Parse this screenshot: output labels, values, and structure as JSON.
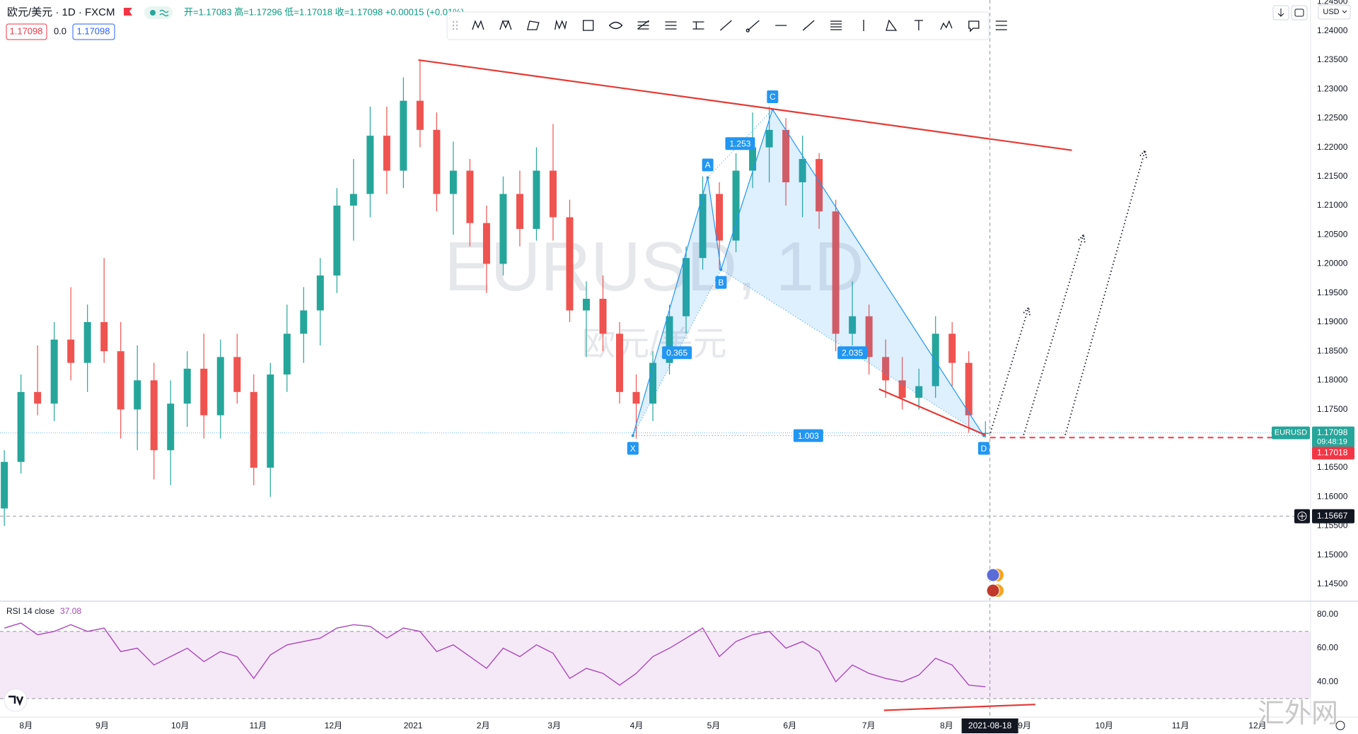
{
  "header": {
    "symbol": "欧元/美元 · 1D · FXCM",
    "ohlc": "开=1.17083 高=1.17296 低=1.17018 收=1.17098 +0.00015 (+0.01%)",
    "badges": [
      "1.17098",
      "0.0",
      "1.17098"
    ]
  },
  "watermark": {
    "symbol": "EURUSD, 1D",
    "name": "欧元/美元"
  },
  "currency": "USD",
  "logo": "汇外网",
  "time_axis": {
    "labels": [
      "8月",
      "9月",
      "10月",
      "11月",
      "12月",
      "2021",
      "2月",
      "3月",
      "4月",
      "5月",
      "6月",
      "7月",
      "8月",
      "9月",
      "10月",
      "11月",
      "12月"
    ],
    "cursor_date": "2021-08-18"
  },
  "chart_data": [
    {
      "type": "candlestick",
      "up_color": "#26a69a",
      "down_color": "#ef5350",
      "grid": false,
      "ylim": [
        1.1422,
        1.2453
      ],
      "yticks": [
        {
          "value": 1.245,
          "label": "1.24500"
        },
        {
          "value": 1.24,
          "label": "1.24000"
        },
        {
          "value": 1.235,
          "label": "1.23500"
        },
        {
          "value": 1.23,
          "label": "1.23000"
        },
        {
          "value": 1.225,
          "label": "1.22500"
        },
        {
          "value": 1.22,
          "label": "1.22000"
        },
        {
          "value": 1.215,
          "label": "1.21500"
        },
        {
          "value": 1.21,
          "label": "1.21000"
        },
        {
          "value": 1.205,
          "label": "1.20500"
        },
        {
          "value": 1.2,
          "label": "1.20000"
        },
        {
          "value": 1.195,
          "label": "1.19500"
        },
        {
          "value": 1.19,
          "label": "1.19000"
        },
        {
          "value": 1.185,
          "label": "1.18500"
        },
        {
          "value": 1.18,
          "label": "1.18000"
        },
        {
          "value": 1.175,
          "label": "1.17500"
        },
        {
          "value": 1.165,
          "label": "1.16500"
        },
        {
          "value": 1.16,
          "label": "1.16000"
        },
        {
          "value": 1.155,
          "label": "1.15500"
        },
        {
          "value": 1.15,
          "label": "1.15000"
        },
        {
          "value": 1.145,
          "label": "1.14500"
        }
      ],
      "candles": [
        [
          1.158,
          1.168,
          1.155,
          1.166
        ],
        [
          1.166,
          1.181,
          1.164,
          1.178
        ],
        [
          1.178,
          1.186,
          1.174,
          1.176
        ],
        [
          1.176,
          1.19,
          1.173,
          1.187
        ],
        [
          1.187,
          1.196,
          1.18,
          1.183
        ],
        [
          1.183,
          1.193,
          1.178,
          1.19
        ],
        [
          1.19,
          1.201,
          1.183,
          1.185
        ],
        [
          1.185,
          1.19,
          1.17,
          1.175
        ],
        [
          1.175,
          1.186,
          1.168,
          1.18
        ],
        [
          1.18,
          1.183,
          1.163,
          1.168
        ],
        [
          1.168,
          1.18,
          1.162,
          1.176
        ],
        [
          1.176,
          1.185,
          1.172,
          1.182
        ],
        [
          1.182,
          1.188,
          1.17,
          1.174
        ],
        [
          1.174,
          1.187,
          1.17,
          1.184
        ],
        [
          1.184,
          1.188,
          1.176,
          1.178
        ],
        [
          1.178,
          1.181,
          1.162,
          1.165
        ],
        [
          1.165,
          1.183,
          1.16,
          1.181
        ],
        [
          1.181,
          1.193,
          1.178,
          1.188
        ],
        [
          1.188,
          1.196,
          1.183,
          1.192
        ],
        [
          1.192,
          1.201,
          1.186,
          1.198
        ],
        [
          1.198,
          1.213,
          1.195,
          1.21
        ],
        [
          1.21,
          1.218,
          1.204,
          1.212
        ],
        [
          1.212,
          1.227,
          1.208,
          1.222
        ],
        [
          1.222,
          1.227,
          1.212,
          1.216
        ],
        [
          1.216,
          1.232,
          1.213,
          1.228
        ],
        [
          1.228,
          1.235,
          1.22,
          1.223
        ],
        [
          1.223,
          1.226,
          1.209,
          1.212
        ],
        [
          1.212,
          1.221,
          1.205,
          1.216
        ],
        [
          1.216,
          1.218,
          1.203,
          1.207
        ],
        [
          1.207,
          1.21,
          1.195,
          1.2
        ],
        [
          1.2,
          1.215,
          1.198,
          1.212
        ],
        [
          1.212,
          1.216,
          1.203,
          1.206
        ],
        [
          1.206,
          1.22,
          1.204,
          1.216
        ],
        [
          1.216,
          1.224,
          1.204,
          1.208
        ],
        [
          1.208,
          1.211,
          1.19,
          1.192
        ],
        [
          1.192,
          1.197,
          1.184,
          1.194
        ],
        [
          1.194,
          1.198,
          1.185,
          1.188
        ],
        [
          1.188,
          1.19,
          1.176,
          1.178
        ],
        [
          1.178,
          1.181,
          1.17,
          1.176
        ],
        [
          1.176,
          1.185,
          1.173,
          1.183
        ],
        [
          1.183,
          1.193,
          1.181,
          1.191
        ],
        [
          1.191,
          1.203,
          1.188,
          1.201
        ],
        [
          1.201,
          1.215,
          1.199,
          1.212
        ],
        [
          1.212,
          1.214,
          1.199,
          1.204
        ],
        [
          1.204,
          1.219,
          1.202,
          1.216
        ],
        [
          1.216,
          1.226,
          1.213,
          1.22
        ],
        [
          1.22,
          1.227,
          1.214,
          1.223
        ],
        [
          1.223,
          1.225,
          1.21,
          1.214
        ],
        [
          1.214,
          1.222,
          1.208,
          1.218
        ],
        [
          1.218,
          1.219,
          1.206,
          1.209
        ],
        [
          1.209,
          1.211,
          1.185,
          1.188
        ],
        [
          1.188,
          1.197,
          1.186,
          1.191
        ],
        [
          1.191,
          1.193,
          1.181,
          1.184
        ],
        [
          1.184,
          1.187,
          1.177,
          1.18
        ],
        [
          1.18,
          1.184,
          1.175,
          1.177
        ],
        [
          1.177,
          1.182,
          1.175,
          1.179
        ],
        [
          1.179,
          1.191,
          1.177,
          1.188
        ],
        [
          1.188,
          1.19,
          1.179,
          1.183
        ],
        [
          1.183,
          1.185,
          1.171,
          1.174
        ],
        [
          1.17083,
          1.17296,
          1.17018,
          1.17098
        ]
      ],
      "pattern": {
        "color": "#2196f3",
        "points": [
          {
            "label": "X",
            "index": 37.8,
            "price": 1.1705
          },
          {
            "label": "A",
            "index": 42.3,
            "price": 1.2148
          },
          {
            "label": "B",
            "index": 43.1,
            "price": 1.199
          },
          {
            "label": "C",
            "index": 46.2,
            "price": 1.2265
          },
          {
            "label": "D",
            "index": 58.9,
            "price": 1.1705
          }
        ],
        "ratios": [
          {
            "value": 0.365,
            "points": [
              0,
              2
            ]
          },
          {
            "value": 1.253,
            "points": [
              1,
              3
            ]
          },
          {
            "value": 2.035,
            "points": [
              2,
              4
            ]
          },
          {
            "value": 1.003,
            "points": [
              0,
              4
            ]
          }
        ]
      },
      "trendlines": [
        {
          "from": [
            24.9,
            1.235
          ],
          "to": [
            64.2,
            1.2195
          ],
          "color": "#e53935"
        },
        {
          "from": [
            52.6,
            1.1785
          ],
          "to": [
            59.0,
            1.1706
          ],
          "color": "#e53935"
        }
      ],
      "projections": [
        {
          "from": [
            59.3,
            1.171
          ],
          "to": [
            61.6,
            1.1925
          ]
        },
        {
          "from": [
            61.3,
            1.1706
          ],
          "to": [
            64.9,
            1.205
          ]
        },
        {
          "from": [
            63.8,
            1.1706
          ],
          "to": [
            68.6,
            1.2195
          ]
        }
      ],
      "last_price": {
        "symbol": "EURUSD",
        "value": 1.17098,
        "countdown": "09:48:19",
        "color": "#26a69a"
      },
      "low_price": {
        "value": 1.17018,
        "color": "#f23645"
      },
      "crosshair": {
        "value": 1.15667
      }
    },
    {
      "type": "line",
      "title": "RSI 14 close",
      "color": "#ab47bc",
      "band": [
        30,
        70
      ],
      "ylim": [
        19,
        88
      ],
      "yticks": [
        {
          "value": 80,
          "label": "80.00"
        },
        {
          "value": 60,
          "label": "60.00"
        },
        {
          "value": 40,
          "label": "40.00"
        }
      ],
      "values": [
        72,
        75,
        68,
        70,
        74,
        70,
        72,
        58,
        60,
        50,
        55,
        60,
        52,
        58,
        55,
        42,
        56,
        62,
        64,
        66,
        72,
        74,
        73,
        66,
        72,
        70,
        58,
        62,
        55,
        48,
        60,
        55,
        62,
        57,
        42,
        48,
        45,
        38,
        45,
        55,
        60,
        66,
        72,
        55,
        64,
        68,
        70,
        60,
        64,
        58,
        40,
        50,
        45,
        42,
        40,
        44,
        54,
        50,
        38,
        37.08
      ],
      "trendlines": [
        {
          "from": [
            52.9,
            23
          ],
          "to": [
            62.0,
            26.5
          ],
          "color": "#e53935"
        }
      ]
    }
  ]
}
